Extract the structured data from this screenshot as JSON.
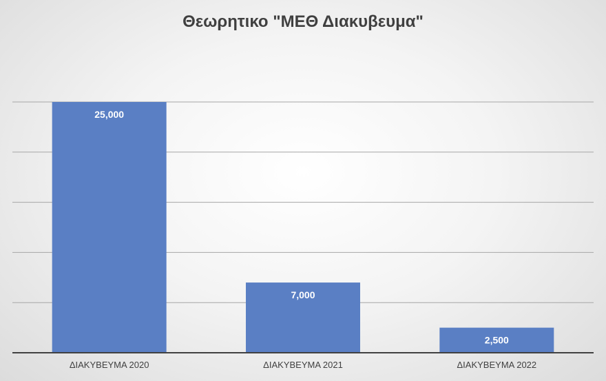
{
  "chart_data": {
    "type": "bar",
    "title": "Θεωρητικο \"ΜΕΘ Διακυβευμα\"",
    "categories": [
      "ΔΙΑΚΥΒΕΥΜΑ 2020",
      "ΔΙΑΚΥΒΕΥΜΑ 2021",
      "ΔΙΑΚΥΒΕΥΜΑ 2022"
    ],
    "values": [
      25000,
      7000,
      2500
    ],
    "data_labels": [
      "25,000",
      "7,000",
      "2,500"
    ],
    "xlabel": "",
    "ylabel": "",
    "ylim": [
      0,
      25000
    ],
    "y_gridlines": [
      0,
      5000,
      10000,
      15000,
      20000,
      25000
    ],
    "grid": true,
    "legend": "none",
    "colors": {
      "bar": "#5a7fc4",
      "bar_label": "#ffffff",
      "gridline": "#a6a6a6",
      "axis": "#404040",
      "tick_label": "#404040"
    }
  }
}
